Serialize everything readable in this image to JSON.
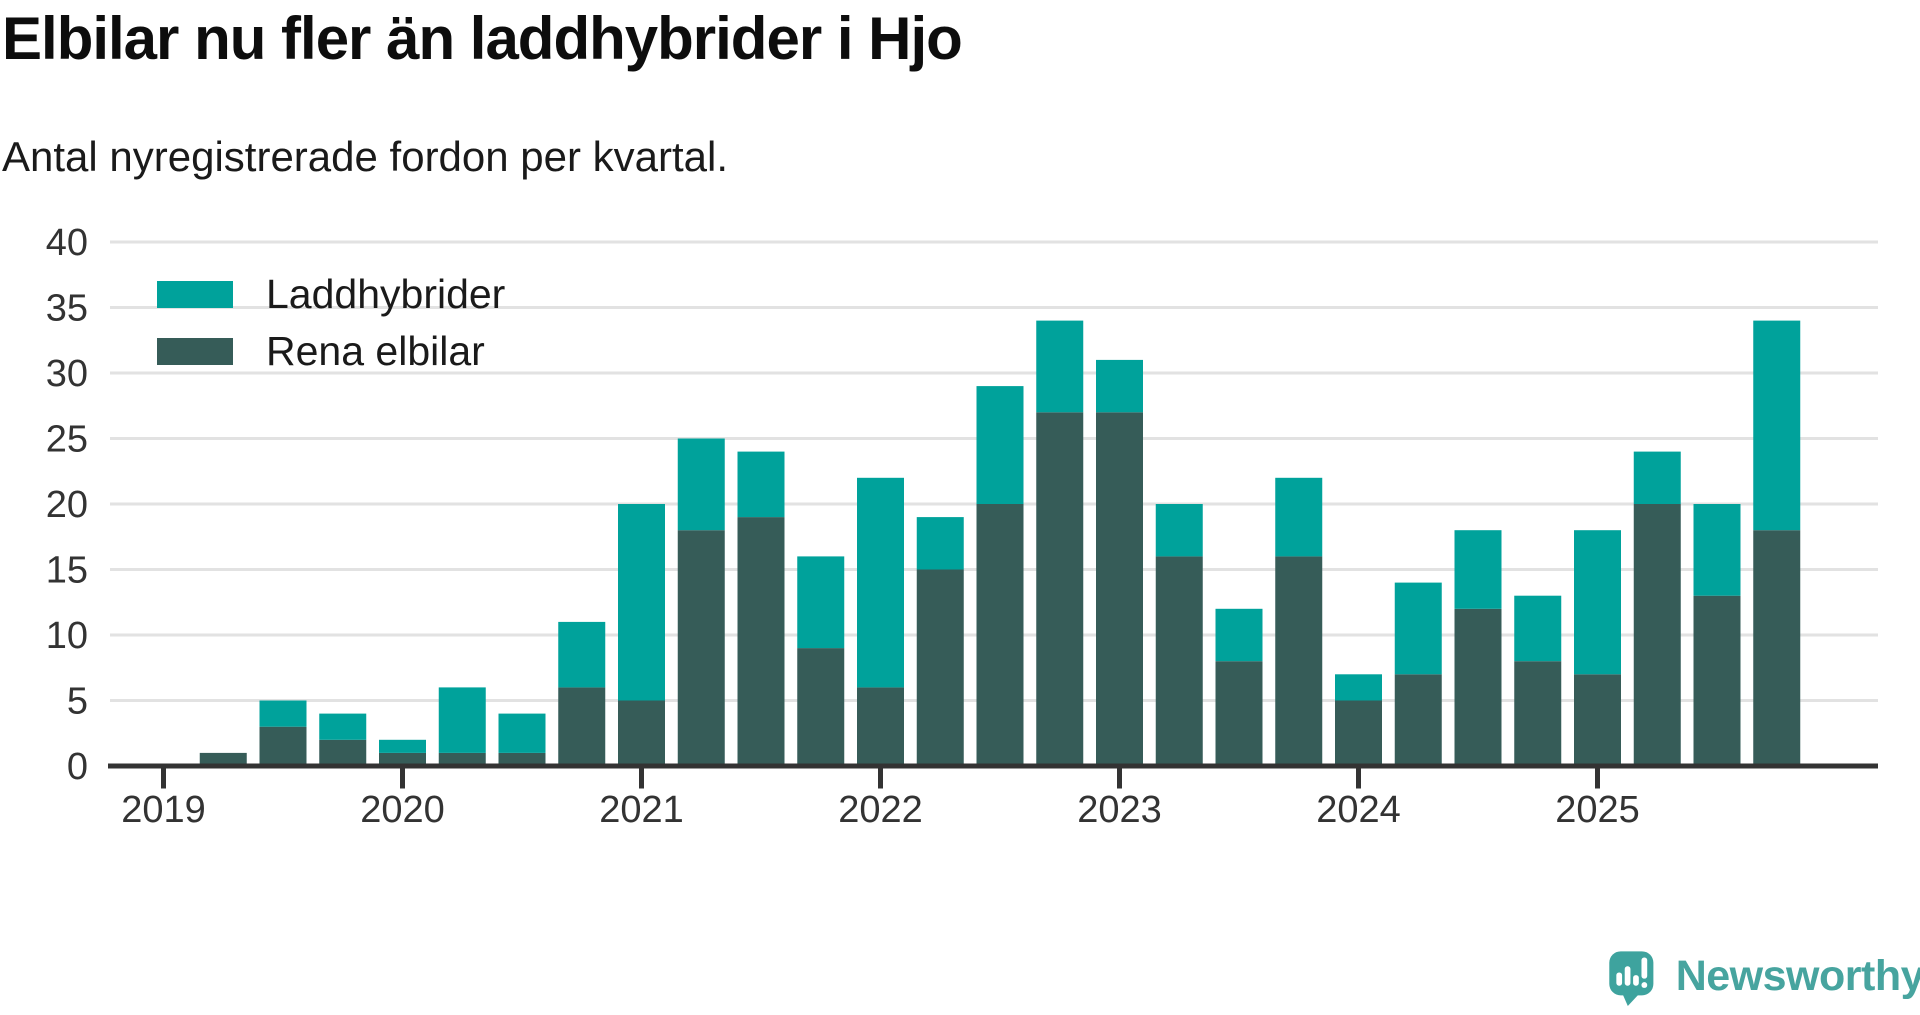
{
  "header": {
    "title": "Elbilar nu fler än laddhybrider i Hjo",
    "subtitle": "Antal nyregistrerade fordon per kvartal."
  },
  "legend": [
    {
      "label": "Laddhybrider",
      "color": "#00a29b"
    },
    {
      "label": "Rena elbilar",
      "color": "#365c58"
    }
  ],
  "chart_data": {
    "type": "bar",
    "stacked": true,
    "title": "Elbilar nu fler än laddhybrider i Hjo",
    "subtitle": "Antal nyregistrerade fordon per kvartal.",
    "categories": [
      "2019-Q1",
      "2019-Q2",
      "2019-Q3",
      "2019-Q4",
      "2020-Q1",
      "2020-Q2",
      "2020-Q3",
      "2020-Q4",
      "2021-Q1",
      "2021-Q2",
      "2021-Q3",
      "2021-Q4",
      "2022-Q1",
      "2022-Q2",
      "2022-Q3",
      "2022-Q4",
      "2023-Q1",
      "2023-Q2",
      "2023-Q3",
      "2023-Q4",
      "2024-Q1",
      "2024-Q2",
      "2024-Q3",
      "2024-Q4",
      "2025-Q1",
      "2025-Q2",
      "2025-Q3",
      "2025-Q4"
    ],
    "series": [
      {
        "name": "Laddhybrider",
        "color": "#00a29b",
        "values": [
          0,
          0,
          2,
          2,
          1,
          5,
          3,
          5,
          15,
          7,
          5,
          7,
          16,
          4,
          9,
          7,
          4,
          4,
          4,
          6,
          2,
          7,
          6,
          5,
          11,
          4,
          7,
          16
        ]
      },
      {
        "name": "Rena elbilar",
        "color": "#365c58",
        "values": [
          0,
          1,
          3,
          2,
          1,
          1,
          1,
          6,
          5,
          18,
          19,
          9,
          6,
          15,
          20,
          27,
          27,
          16,
          8,
          16,
          5,
          7,
          12,
          8,
          7,
          20,
          13,
          18
        ]
      }
    ],
    "totals": [
      0,
      1,
      5,
      4,
      2,
      6,
      4,
      11,
      20,
      25,
      24,
      16,
      22,
      19,
      29,
      34,
      31,
      20,
      12,
      22,
      7,
      14,
      18,
      13,
      18,
      24,
      20,
      34
    ],
    "xlabel": "",
    "ylabel": "",
    "x_tick_labels": [
      "2019",
      "2020",
      "2021",
      "2022",
      "2023",
      "2024",
      "2025"
    ],
    "y_ticks": [
      0,
      5,
      10,
      15,
      20,
      25,
      30,
      35,
      40
    ],
    "ylim": [
      0,
      40
    ],
    "grid": "horizontal",
    "legend_position": "top-left"
  },
  "colors": {
    "laddhybrider": "#00a29b",
    "rena_elbilar": "#365c58",
    "axis": "#333333",
    "gridline": "#e2e2e2",
    "text": "#1a1a1a",
    "brand_bubble": "#3ea39e",
    "brand_text": "#47a49f"
  },
  "footer": {
    "brand": "Newsworthy"
  }
}
